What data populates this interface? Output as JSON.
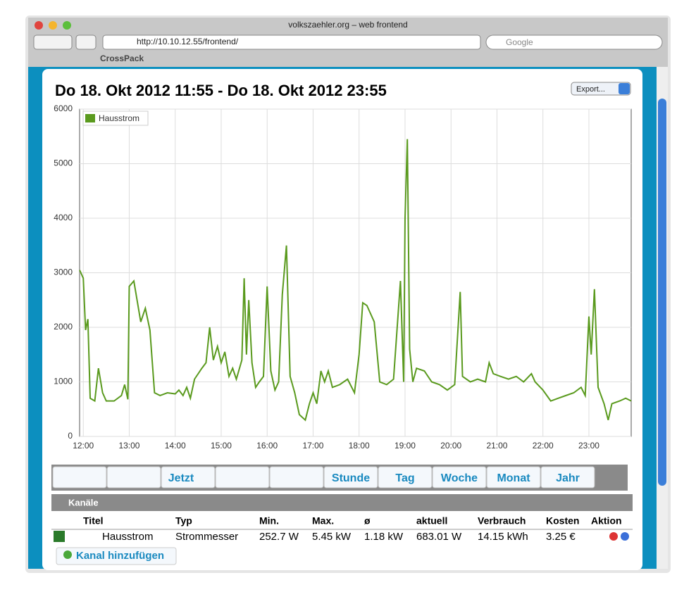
{
  "window": {
    "title": "volkszaehler.org – web frontend",
    "url": "http://10.10.12.55/frontend/",
    "search_placeholder": "Google",
    "bookmarks": [
      "CrossPack"
    ]
  },
  "export_button": "Export...",
  "chart_data": {
    "type": "line",
    "title": "Do 18. Okt 2012 11:55 - Do 18. Okt 2012 23:55",
    "x": [
      11.92,
      12.0,
      12.05,
      12.1,
      12.15,
      12.25,
      12.33,
      12.42,
      12.5,
      12.67,
      12.83,
      12.9,
      12.97,
      13.0,
      13.1,
      13.25,
      13.35,
      13.45,
      13.55,
      13.67,
      13.83,
      14.0,
      14.08,
      14.17,
      14.25,
      14.33,
      14.42,
      14.5,
      14.58,
      14.67,
      14.75,
      14.83,
      14.92,
      15.0,
      15.08,
      15.17,
      15.25,
      15.33,
      15.45,
      15.5,
      15.55,
      15.6,
      15.67,
      15.75,
      15.83,
      15.92,
      16.0,
      16.08,
      16.17,
      16.25,
      16.33,
      16.42,
      16.5,
      16.6,
      16.7,
      16.83,
      16.92,
      17.0,
      17.08,
      17.17,
      17.25,
      17.33,
      17.42,
      17.58,
      17.75,
      17.9,
      18.0,
      18.08,
      18.17,
      18.33,
      18.45,
      18.6,
      18.75,
      18.9,
      18.97,
      19.0,
      19.05,
      19.1,
      19.17,
      19.25,
      19.42,
      19.58,
      19.75,
      19.92,
      20.08,
      20.2,
      20.25,
      20.42,
      20.58,
      20.75,
      20.83,
      20.92,
      21.08,
      21.25,
      21.42,
      21.58,
      21.75,
      21.83,
      22.0,
      22.17,
      22.33,
      22.5,
      22.67,
      22.83,
      22.92,
      23.0,
      23.05,
      23.12,
      23.2,
      23.33,
      23.42,
      23.5,
      23.67,
      23.8,
      23.92
    ],
    "series": [
      {
        "name": "Hausstrom",
        "color": "#5a9a1e",
        "values": [
          3050,
          2900,
          1950,
          2150,
          700,
          650,
          1250,
          800,
          650,
          650,
          750,
          950,
          680,
          2750,
          2850,
          2100,
          2350,
          1950,
          800,
          750,
          800,
          780,
          850,
          750,
          900,
          700,
          1050,
          1150,
          1250,
          1350,
          2000,
          1400,
          1650,
          1350,
          1550,
          1100,
          1250,
          1050,
          1400,
          2900,
          1500,
          2500,
          1350,
          900,
          1000,
          1100,
          2750,
          1200,
          850,
          1000,
          2600,
          3500,
          1100,
          800,
          400,
          300,
          600,
          800,
          600,
          1200,
          1000,
          1200,
          900,
          950,
          1050,
          800,
          1500,
          2450,
          2400,
          2100,
          1000,
          950,
          1050,
          2850,
          1000,
          4000,
          5450,
          1600,
          1000,
          1250,
          1200,
          1000,
          950,
          850,
          950,
          2650,
          1100,
          1000,
          1050,
          1000,
          1350,
          1150,
          1100,
          1050,
          1100,
          1000,
          1150,
          1000,
          850,
          650,
          700,
          750,
          800,
          900,
          750,
          2200,
          1500,
          2700,
          900,
          600,
          300,
          600,
          650,
          700,
          650
        ]
      }
    ],
    "xlim": [
      11.92,
      23.92
    ],
    "xticks": [
      {
        "value": 12,
        "label": "12:00"
      },
      {
        "value": 13,
        "label": "13:00"
      },
      {
        "value": 14,
        "label": "14:00"
      },
      {
        "value": 15,
        "label": "15:00"
      },
      {
        "value": 16,
        "label": "16:00"
      },
      {
        "value": 17,
        "label": "17:00"
      },
      {
        "value": 18,
        "label": "18:00"
      },
      {
        "value": 19,
        "label": "19:00"
      },
      {
        "value": 20,
        "label": "20:00"
      },
      {
        "value": 21,
        "label": "21:00"
      },
      {
        "value": 22,
        "label": "22:00"
      },
      {
        "value": 23,
        "label": "23:00"
      }
    ],
    "ylim": [
      0,
      6000
    ],
    "yticks": [
      0,
      1000,
      2000,
      3000,
      4000,
      5000,
      6000
    ],
    "grid": true,
    "legend": "upper left"
  },
  "nav_buttons": [
    "Jetzt",
    "Stunde",
    "Tag",
    "Woche",
    "Monat",
    "Jahr"
  ],
  "channels": {
    "title": "Kanäle",
    "columns": [
      "Titel",
      "Typ",
      "Min.",
      "Max.",
      "ø",
      "aktuell",
      "Verbrauch",
      "Kosten",
      "Aktion"
    ],
    "rows": [
      [
        "Hausstrom",
        "Strommesser",
        "252.7 W",
        "5.45 kW",
        "1.18 kW",
        "683.01 W",
        "14.15 kWh",
        "3.25 €"
      ]
    ]
  },
  "add_channel": "Kanal hinzufügen"
}
